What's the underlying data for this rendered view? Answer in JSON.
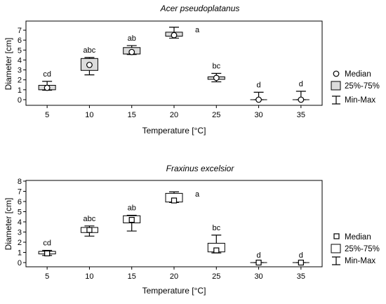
{
  "chart_data": [
    {
      "type": "box",
      "title": "Acer pseudoplatanus",
      "xlabel": "Temperature [°C]",
      "ylabel": "Diameter [cm]",
      "ylim": [
        0,
        7
      ],
      "yticks": [
        "0",
        "1",
        "2",
        "3",
        "4",
        "5",
        "6",
        "7"
      ],
      "categories": [
        "5",
        "10",
        "15",
        "20",
        "25",
        "30",
        "35"
      ],
      "median_marker": "circle",
      "box_fill": "#dcdcdc",
      "boxes": [
        {
          "median": 1.2,
          "q1": 1.0,
          "q3": 1.45,
          "min": 0.95,
          "max": 1.85,
          "letters": "cd"
        },
        {
          "median": 3.5,
          "q1": 2.95,
          "q3": 4.15,
          "min": 2.5,
          "max": 4.25,
          "letters": "abc"
        },
        {
          "median": 4.8,
          "q1": 4.6,
          "q3": 5.25,
          "min": 4.55,
          "max": 5.45,
          "letters": "ab"
        },
        {
          "median": 6.5,
          "q1": 6.4,
          "q3": 6.8,
          "min": 6.2,
          "max": 7.3,
          "letters": "a"
        },
        {
          "median": 2.2,
          "q1": 2.05,
          "q3": 2.3,
          "min": 1.8,
          "max": 2.65,
          "letters": "bc"
        },
        {
          "median": 0.0,
          "q1": 0.0,
          "q3": 0.0,
          "min": 0.0,
          "max": 0.75,
          "letters": "d"
        },
        {
          "median": 0.0,
          "q1": 0.0,
          "q3": 0.0,
          "min": 0.0,
          "max": 0.85,
          "letters": "d"
        }
      ],
      "legend": {
        "position": "right",
        "items": [
          "Median",
          "25%-75%",
          "Min-Max"
        ]
      }
    },
    {
      "type": "box",
      "title": "Fraxinus excelsior",
      "xlabel": "Temperature [°C]",
      "ylabel": "Diameter [cm]",
      "ylim": [
        0,
        8
      ],
      "yticks": [
        "0",
        "1",
        "2",
        "3",
        "4",
        "5",
        "6",
        "7",
        "8"
      ],
      "categories": [
        "5",
        "10",
        "15",
        "20",
        "25",
        "30",
        "35"
      ],
      "median_marker": "square",
      "box_fill": "#ffffff",
      "boxes": [
        {
          "median": 0.9,
          "q1": 0.85,
          "q3": 1.1,
          "min": 0.7,
          "max": 1.2,
          "letters": "cd"
        },
        {
          "median": 3.2,
          "q1": 2.95,
          "q3": 3.45,
          "min": 2.6,
          "max": 3.6,
          "letters": "abc"
        },
        {
          "median": 4.2,
          "q1": 3.9,
          "q3": 4.6,
          "min": 3.1,
          "max": 4.65,
          "letters": "ab"
        },
        {
          "median": 6.1,
          "q1": 5.95,
          "q3": 6.8,
          "min": 5.9,
          "max": 6.95,
          "letters": "a"
        },
        {
          "median": 1.2,
          "q1": 1.05,
          "q3": 1.9,
          "min": 0.95,
          "max": 2.7,
          "letters": "bc"
        },
        {
          "median": 0.0,
          "q1": 0.0,
          "q3": 0.0,
          "min": 0.0,
          "max": 0.0,
          "letters": "d"
        },
        {
          "median": 0.0,
          "q1": 0.0,
          "q3": 0.0,
          "min": 0.0,
          "max": 0.0,
          "letters": "d"
        }
      ],
      "legend": {
        "position": "right",
        "items": [
          "Median",
          "25%-75%",
          "Min-Max"
        ]
      }
    }
  ]
}
